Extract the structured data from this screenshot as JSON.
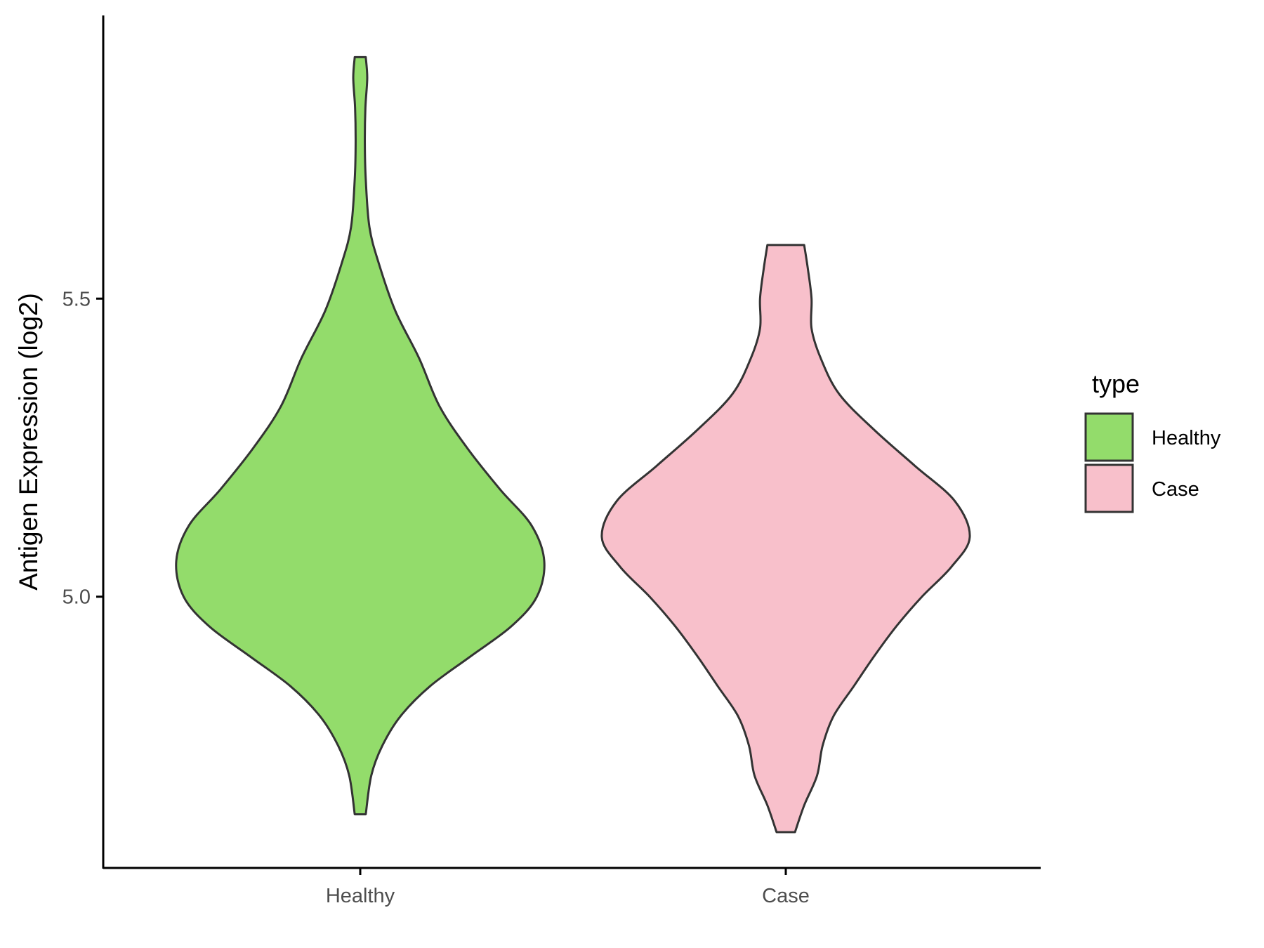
{
  "chart_data": {
    "type": "violin",
    "title": "",
    "xlabel": "",
    "ylabel": "Antigen Expression (log2)",
    "ylim": [
      4.545,
      5.975
    ],
    "yticks": [
      5.0,
      5.5
    ],
    "ytick_labels": [
      "5.0",
      "5.5"
    ],
    "categories": [
      "Healthy",
      "Case"
    ],
    "grid": false,
    "legend": {
      "title": "type",
      "position": "right",
      "entries": [
        {
          "label": "Healthy",
          "color": "#93dc6b"
        },
        {
          "label": "Case",
          "color": "#f8c0cb"
        }
      ]
    },
    "series": [
      {
        "category": "Healthy",
        "color": "#93dc6b",
        "min": 4.635,
        "max": 5.905,
        "density": [
          [
            4.635,
            0.03
          ],
          [
            4.7,
            0.06
          ],
          [
            4.75,
            0.12
          ],
          [
            4.8,
            0.22
          ],
          [
            4.85,
            0.38
          ],
          [
            4.9,
            0.6
          ],
          [
            4.95,
            0.82
          ],
          [
            5.0,
            0.96
          ],
          [
            5.06,
            1.0
          ],
          [
            5.12,
            0.93
          ],
          [
            5.18,
            0.76
          ],
          [
            5.25,
            0.58
          ],
          [
            5.32,
            0.43
          ],
          [
            5.4,
            0.32
          ],
          [
            5.48,
            0.19
          ],
          [
            5.56,
            0.1
          ],
          [
            5.62,
            0.05
          ],
          [
            5.7,
            0.03
          ],
          [
            5.76,
            0.025
          ],
          [
            5.82,
            0.028
          ],
          [
            5.87,
            0.038
          ],
          [
            5.905,
            0.03
          ]
        ]
      },
      {
        "category": "Case",
        "color": "#f8c0cb",
        "min": 4.605,
        "max": 5.59,
        "density": [
          [
            4.605,
            0.05
          ],
          [
            4.65,
            0.1
          ],
          [
            4.7,
            0.17
          ],
          [
            4.75,
            0.2
          ],
          [
            4.8,
            0.26
          ],
          [
            4.85,
            0.37
          ],
          [
            4.9,
            0.48
          ],
          [
            4.95,
            0.6
          ],
          [
            5.0,
            0.74
          ],
          [
            5.05,
            0.9
          ],
          [
            5.1,
            1.0
          ],
          [
            5.16,
            0.92
          ],
          [
            5.22,
            0.7
          ],
          [
            5.28,
            0.48
          ],
          [
            5.34,
            0.29
          ],
          [
            5.4,
            0.19
          ],
          [
            5.45,
            0.14
          ],
          [
            5.5,
            0.14
          ],
          [
            5.55,
            0.12
          ],
          [
            5.59,
            0.1
          ]
        ]
      }
    ]
  }
}
